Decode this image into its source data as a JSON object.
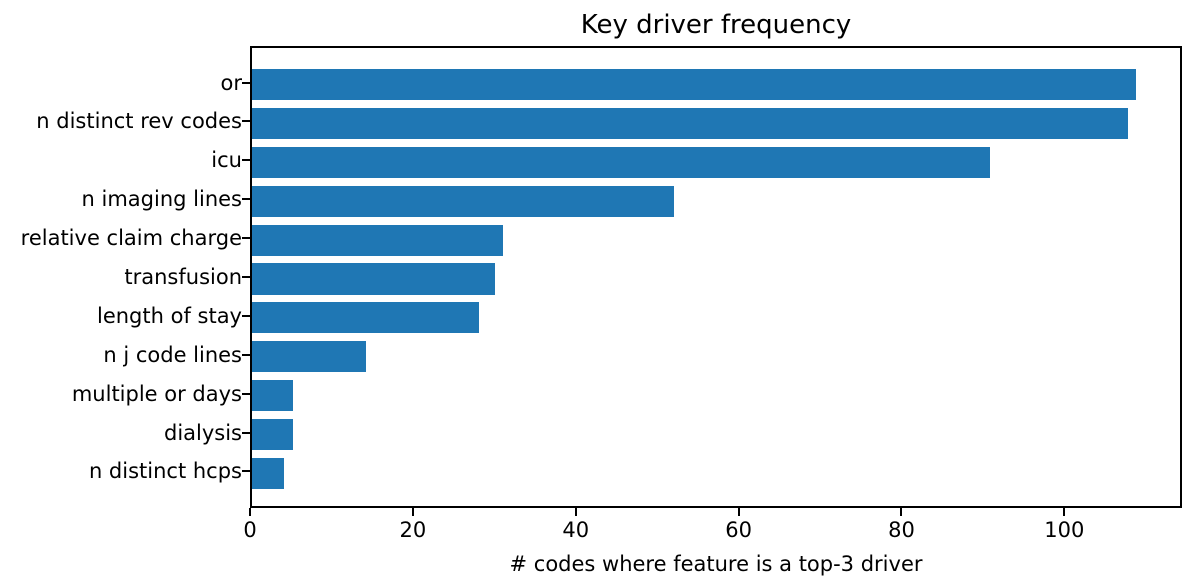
{
  "chart_data": {
    "type": "bar",
    "orientation": "horizontal",
    "title": "Key driver frequency",
    "xlabel": "# codes where feature is a top-3 driver",
    "ylabel": "",
    "categories": [
      "or",
      "n distinct rev codes",
      "icu",
      "n imaging lines",
      "relative claim charge",
      "transfusion",
      "length of stay",
      "n j code lines",
      "multiple or days",
      "dialysis",
      "n distinct hcps"
    ],
    "values": [
      109,
      108,
      91,
      52,
      31,
      30,
      28,
      14,
      5,
      5,
      4
    ],
    "xticks": [
      0,
      20,
      40,
      60,
      80,
      100
    ],
    "xlim": [
      0,
      114.45
    ],
    "bar_color": "#1f77b4",
    "axis_color": "#000000",
    "background_color": "#ffffff",
    "grid": false,
    "legend": null
  }
}
